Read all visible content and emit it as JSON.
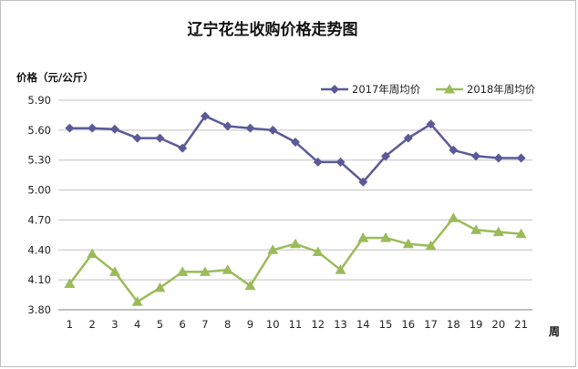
{
  "chart_data": {
    "type": "line",
    "title": "辽宁花生收购价格走势图",
    "ylabel": "价格（元/公斤）",
    "xlabel": "周",
    "ylim": [
      3.8,
      5.9
    ],
    "yticks": [
      "3.80",
      "4.10",
      "4.40",
      "4.70",
      "5.00",
      "5.30",
      "5.60",
      "5.90"
    ],
    "categories": [
      "1",
      "2",
      "3",
      "4",
      "5",
      "6",
      "7",
      "8",
      "9",
      "10",
      "11",
      "12",
      "13",
      "14",
      "15",
      "16",
      "17",
      "18",
      "19",
      "20",
      "21"
    ],
    "grid": true,
    "legend_position": "top-right",
    "series": [
      {
        "name": "2017年周均价",
        "color": "#5b5a98",
        "marker": "diamond",
        "values": [
          5.62,
          5.62,
          5.61,
          5.52,
          5.52,
          5.42,
          5.74,
          5.64,
          5.62,
          5.6,
          5.48,
          5.28,
          5.28,
          5.08,
          5.34,
          5.52,
          5.66,
          5.4,
          5.34,
          5.32,
          5.32
        ]
      },
      {
        "name": "2018年周均价",
        "color": "#9bbb59",
        "marker": "triangle",
        "values": [
          4.06,
          4.36,
          4.18,
          3.88,
          4.02,
          4.18,
          4.18,
          4.2,
          4.04,
          4.4,
          4.46,
          4.38,
          4.2,
          4.52,
          4.52,
          4.46,
          4.44,
          4.72,
          4.6,
          4.58,
          4.56
        ]
      }
    ]
  }
}
